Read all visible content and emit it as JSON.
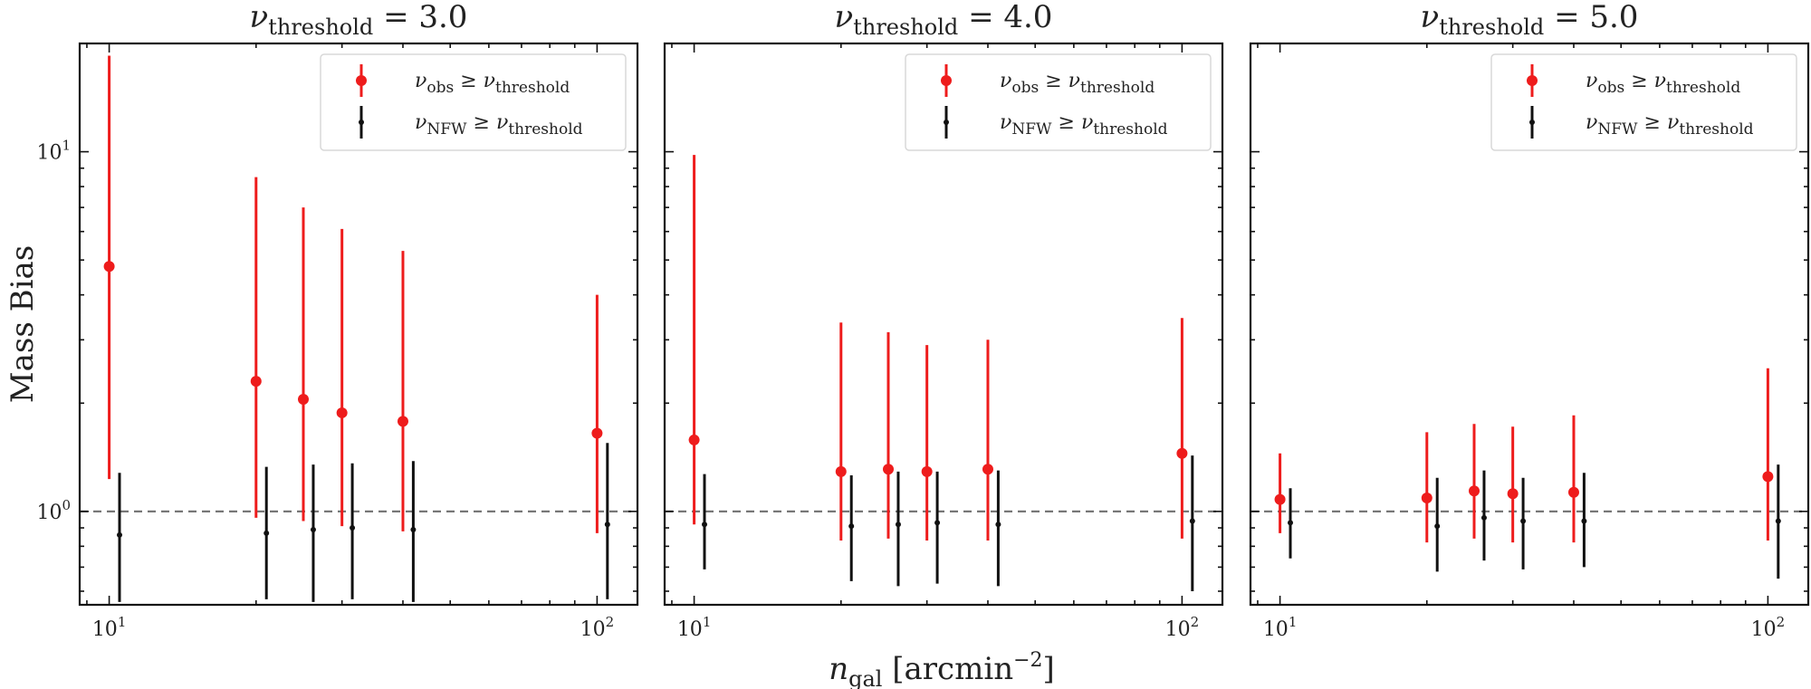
{
  "chart_data": {
    "type": "scatter",
    "title": "",
    "xlabel": "n_gal [arcmin^-2]",
    "ylabel": "Mass Bias",
    "xscale": "log",
    "yscale": "log",
    "xlim": [
      8.7,
      121
    ],
    "ylim": [
      0.55,
      20
    ],
    "reference_line": 1.0,
    "x_ticks": [
      10,
      100
    ],
    "x_tick_labels": [
      "10^1",
      "10^2"
    ],
    "y_ticks": [
      1,
      10
    ],
    "y_tick_labels": [
      "10^0",
      "10^1"
    ],
    "legend": [
      {
        "label": "ν_obs ≥ ν_threshold",
        "color": "#ee1c1c"
      },
      {
        "label": "ν_NFW ≥ ν_threshold",
        "color": "#111111"
      }
    ],
    "panels": [
      {
        "title": "ν_threshold = 3.0",
        "series": [
          {
            "name": "ν_obs ≥ ν_threshold",
            "color": "#ee1c1c",
            "x": [
              10,
              20,
              25,
              30,
              40,
              100
            ],
            "y": [
              4.8,
              2.3,
              2.05,
              1.88,
              1.78,
              1.65
            ],
            "y_low": [
              1.23,
              0.96,
              0.94,
              0.91,
              0.88,
              0.87
            ],
            "y_high": [
              18.5,
              8.5,
              7.0,
              6.1,
              5.3,
              4.0
            ]
          },
          {
            "name": "ν_NFW ≥ ν_threshold",
            "color": "#111111",
            "x": [
              10.5,
              21,
              26.2,
              31.5,
              42,
              105
            ],
            "y": [
              0.86,
              0.87,
              0.89,
              0.9,
              0.89,
              0.92
            ],
            "y_low": [
              0.56,
              0.57,
              0.56,
              0.57,
              0.56,
              0.57
            ],
            "y_high": [
              1.28,
              1.33,
              1.35,
              1.36,
              1.38,
              1.55
            ]
          }
        ]
      },
      {
        "title": "ν_threshold = 4.0",
        "series": [
          {
            "name": "ν_obs ≥ ν_threshold",
            "color": "#ee1c1c",
            "x": [
              10,
              20,
              25,
              30,
              40,
              100
            ],
            "y": [
              1.58,
              1.29,
              1.31,
              1.29,
              1.31,
              1.45
            ],
            "y_low": [
              0.92,
              0.83,
              0.84,
              0.83,
              0.83,
              0.84
            ],
            "y_high": [
              9.8,
              3.35,
              3.15,
              2.9,
              3.0,
              3.45
            ]
          },
          {
            "name": "ν_NFW ≥ ν_threshold",
            "color": "#111111",
            "x": [
              10.5,
              21,
              26.2,
              31.5,
              42,
              105
            ],
            "y": [
              0.92,
              0.91,
              0.92,
              0.93,
              0.92,
              0.94
            ],
            "y_low": [
              0.69,
              0.64,
              0.62,
              0.63,
              0.62,
              0.6
            ],
            "y_high": [
              1.27,
              1.26,
              1.29,
              1.29,
              1.3,
              1.43
            ]
          }
        ]
      },
      {
        "title": "ν_threshold = 5.0",
        "series": [
          {
            "name": "ν_obs ≥ ν_threshold",
            "color": "#ee1c1c",
            "x": [
              10,
              20,
              25,
              30,
              40,
              100
            ],
            "y": [
              1.08,
              1.09,
              1.14,
              1.12,
              1.13,
              1.25
            ],
            "y_low": [
              0.87,
              0.82,
              0.84,
              0.82,
              0.82,
              0.83
            ],
            "y_high": [
              1.45,
              1.66,
              1.75,
              1.72,
              1.85,
              2.5
            ]
          },
          {
            "name": "ν_NFW ≥ ν_threshold",
            "color": "#111111",
            "x": [
              10.5,
              21,
              26.2,
              31.5,
              42,
              105
            ],
            "y": [
              0.93,
              0.91,
              0.96,
              0.94,
              0.94,
              0.94
            ],
            "y_low": [
              0.74,
              0.68,
              0.73,
              0.69,
              0.7,
              0.65
            ],
            "y_high": [
              1.16,
              1.24,
              1.3,
              1.24,
              1.28,
              1.35
            ]
          }
        ]
      }
    ]
  }
}
